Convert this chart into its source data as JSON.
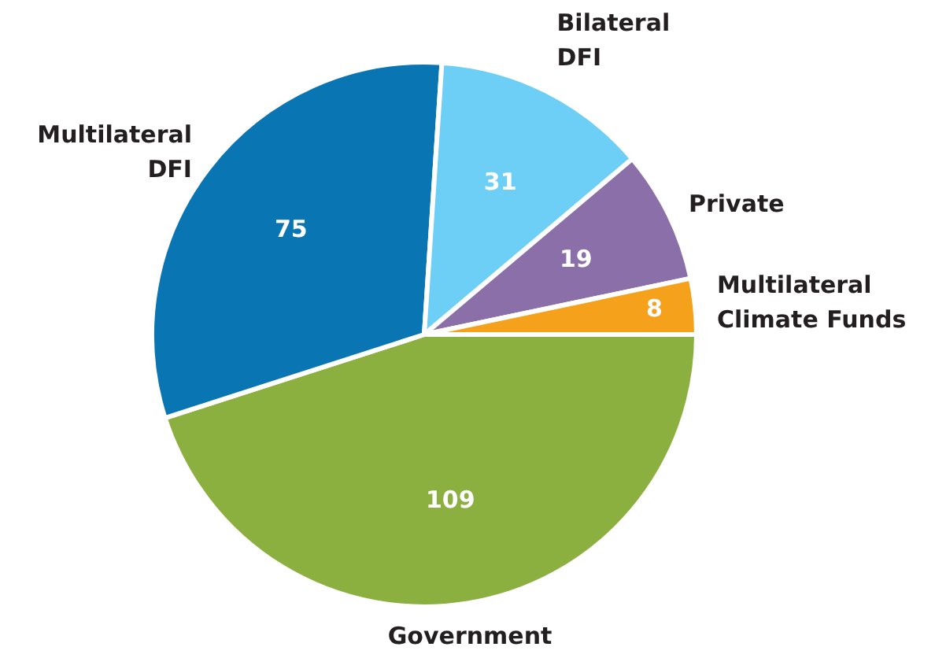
{
  "chart_data": {
    "type": "pie",
    "categories": [
      "Government",
      "Multilateral DFI",
      "Bilateral DFI",
      "Private",
      "Multilateral Climate Funds"
    ],
    "values": [
      109,
      75,
      31,
      19,
      8
    ],
    "colors": [
      "#8cb040",
      "#0a75b3",
      "#6dcff6",
      "#8a6fa8",
      "#f5a11c"
    ],
    "data_labels": true,
    "legend": false
  }
}
